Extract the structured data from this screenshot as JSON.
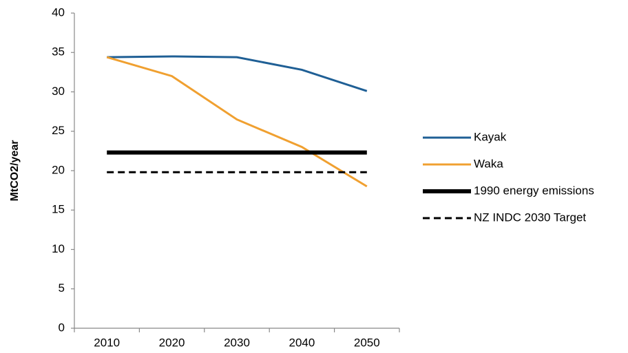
{
  "chart_data": {
    "type": "line",
    "y_label": "MtCO2/year",
    "categories": [
      "2010",
      "2020",
      "2030",
      "2040",
      "2050"
    ],
    "series": [
      {
        "name": "Kayak",
        "color": "#1f5f95",
        "line_style": "solid",
        "values": [
          34.4,
          34.5,
          34.4,
          32.8,
          30.1
        ]
      },
      {
        "name": "Waka",
        "color": "#f0a030",
        "line_style": "solid",
        "values": [
          34.4,
          32.0,
          26.5,
          23.0,
          18.0
        ]
      },
      {
        "name": "1990 energy emissions",
        "color": "#000000",
        "line_style": "thick",
        "values": [
          22.3,
          22.3,
          22.3,
          22.3,
          22.3
        ]
      },
      {
        "name": "NZ INDC 2030 Target",
        "color": "#000000",
        "line_style": "dashed",
        "values": [
          19.8,
          19.8,
          19.8,
          19.8,
          19.8
        ]
      }
    ],
    "ylim": [
      0,
      40
    ],
    "yticks": [
      0,
      5,
      10,
      15,
      20,
      25,
      30,
      35,
      40
    ],
    "grid": false,
    "legend": "right"
  }
}
